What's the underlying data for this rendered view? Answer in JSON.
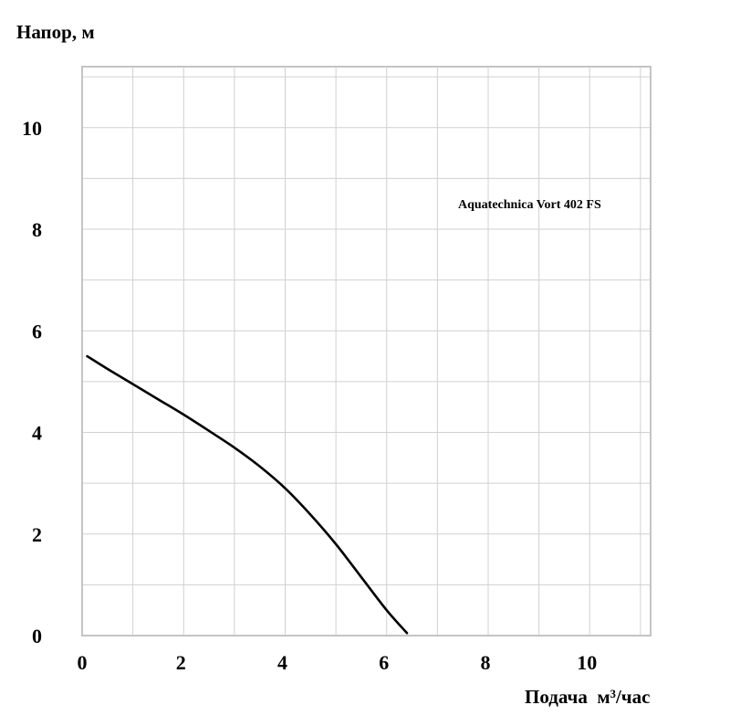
{
  "chart_data": {
    "type": "line",
    "ylabel": "Напор, м",
    "xlabel": "Подача  м³/час",
    "annotation": "Aquatechnica Vort 402 FS",
    "xlim": [
      0,
      11.2
    ],
    "ylim": [
      0,
      11.2
    ],
    "x_ticks": [
      0,
      2,
      4,
      6,
      8,
      10
    ],
    "y_ticks": [
      0,
      2,
      4,
      6,
      8,
      10
    ],
    "grid": true,
    "series": [
      {
        "x": [
          0.1,
          0.5,
          1.0,
          1.5,
          2.0,
          2.5,
          3.0,
          3.5,
          4.0,
          4.5,
          5.0,
          5.5,
          6.0,
          6.4
        ],
        "y": [
          5.5,
          5.25,
          4.95,
          4.65,
          4.35,
          4.03,
          3.7,
          3.33,
          2.9,
          2.38,
          1.8,
          1.15,
          0.5,
          0.05
        ]
      }
    ]
  }
}
